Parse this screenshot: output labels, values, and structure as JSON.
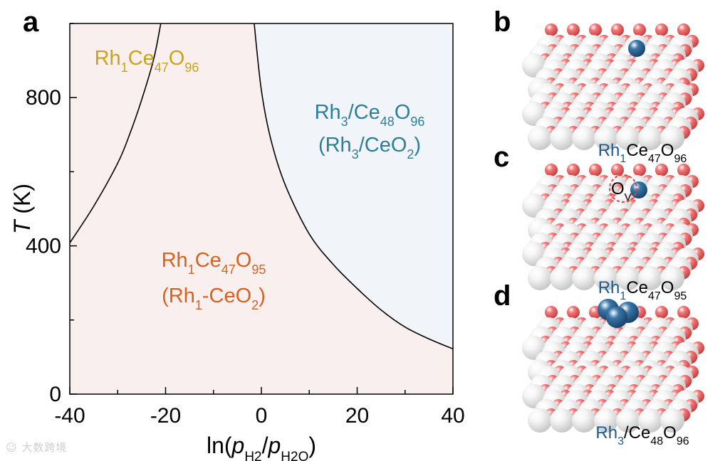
{
  "chart_data": {
    "type": "area",
    "panel_label": "a",
    "xlabel": {
      "prefix": "ln(",
      "p1": "p",
      "p1_sub": "H2",
      "slash": "/",
      "p2": "p",
      "p2_sub": "H2O",
      "suffix": ")"
    },
    "ylabel": {
      "main": "T",
      "unit": " (K)"
    },
    "xlim": [
      -40,
      40
    ],
    "ylim": [
      0,
      1000
    ],
    "x_ticks": [
      -40,
      -20,
      0,
      20,
      40
    ],
    "x_tick_labels": [
      "-40",
      "-20",
      "0",
      "20",
      "40"
    ],
    "y_ticks": [
      0,
      400,
      800
    ],
    "y_tick_labels": [
      "0",
      "400",
      "800"
    ],
    "grid": false,
    "boundaries": [
      {
        "name": "left",
        "x": [
          -40,
          -35,
          -30,
          -27.5,
          -25,
          -22.5,
          -21
        ],
        "y": [
          408,
          507,
          623,
          701,
          794,
          903,
          1000
        ]
      },
      {
        "name": "right",
        "x": [
          -1.5,
          0,
          2,
          5,
          10,
          15,
          20,
          25,
          30,
          35,
          40
        ],
        "y": [
          1000,
          820,
          686,
          564,
          432,
          350,
          285,
          227,
          181,
          149,
          122
        ]
      }
    ],
    "regions": [
      {
        "label": [
          "Rh",
          "1",
          "Ce",
          "47",
          "O",
          "96"
        ],
        "label2": null,
        "color": "#c9a418",
        "fill": "#fbfaee"
      },
      {
        "label": [
          "Rh",
          "1",
          "Ce",
          "47",
          "O",
          "95"
        ],
        "label2": [
          "(Rh",
          "1",
          "-CeO",
          "2",
          ")"
        ],
        "color": "#d9611e",
        "fill": "#f8efee"
      },
      {
        "label": [
          "Rh",
          "3",
          "/Ce",
          "48",
          "O",
          "96"
        ],
        "label2": [
          "(Rh",
          "3",
          "/CeO",
          "2",
          ")"
        ],
        "color": "#2c7e9a",
        "fill": "#f1f5fa"
      }
    ]
  },
  "panels": [
    {
      "label": "b",
      "caption": [
        "Rh",
        "1",
        "Ce",
        "47",
        "O",
        "96"
      ],
      "adsorbate": "single-rh-atom"
    },
    {
      "label": "c",
      "caption": [
        "Rh",
        "1",
        "Ce",
        "47",
        "O",
        "95"
      ],
      "adsorbate": "single-rh-atom-with-vacancy",
      "vacancy_label": [
        "O",
        "V"
      ]
    },
    {
      "label": "d",
      "caption": [
        "Rh",
        "3",
        "/Ce",
        "48",
        "O",
        "96"
      ],
      "adsorbate": "rh3-cluster"
    }
  ],
  "colors": {
    "rh": "#1d5a8e",
    "o": "#e55c5c",
    "ce": "#f4f4f4",
    "caption_rh": "#1d5a8e",
    "vacancy": "#d44"
  },
  "watermark": "大数跨境"
}
